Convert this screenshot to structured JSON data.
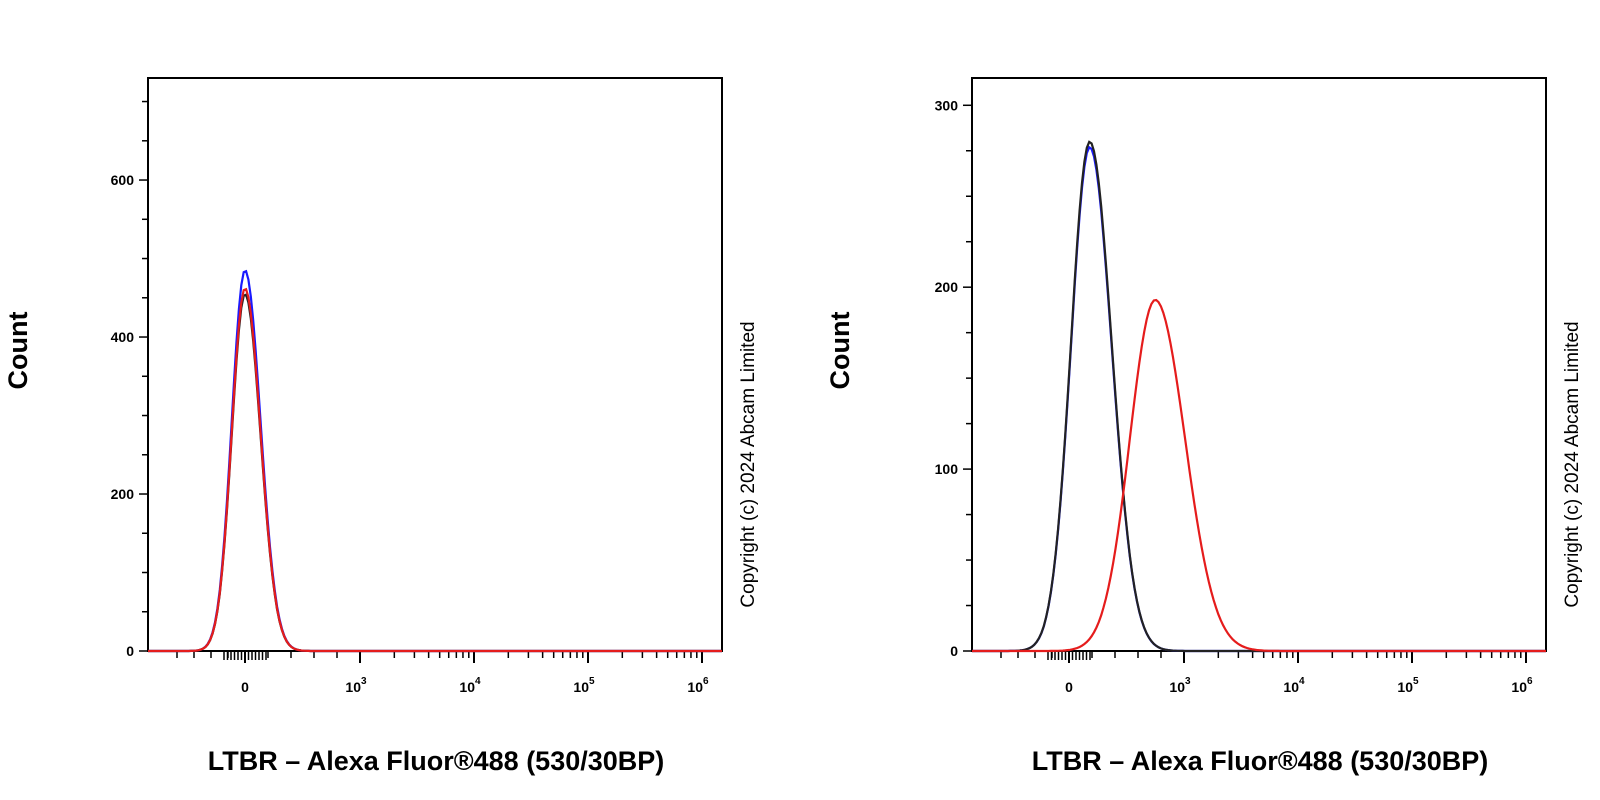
{
  "chart_data": [
    {
      "type": "line",
      "subtype": "histogram-overlay",
      "xlabel": "LTBR – Alexa Fluor®488 (530/30BP)",
      "ylabel": "Count",
      "x_scale": "biexponential",
      "x_tick_labels": [
        {
          "base": "0",
          "exp": "",
          "value": 0
        },
        {
          "base": "10",
          "exp": "3",
          "value": 1000
        },
        {
          "base": "10",
          "exp": "4",
          "value": 10000
        },
        {
          "base": "10",
          "exp": "5",
          "value": 100000
        },
        {
          "base": "10",
          "exp": "6",
          "value": 1000000
        }
      ],
      "y_ticks": [
        0,
        200,
        400,
        600
      ],
      "ylim": [
        0,
        730
      ],
      "copyright": "Copyright (c) 2024 Abcam Limited",
      "grid": false,
      "series": [
        {
          "color": "#1a1aff",
          "peak_x": 0,
          "peak_y": 485,
          "width": 0.06
        },
        {
          "color": "#222222",
          "peak_x": 0,
          "peak_y": 455,
          "width": 0.06
        },
        {
          "color": "#e51c1c",
          "peak_x": 0,
          "peak_y": 462,
          "width": 0.06
        }
      ]
    },
    {
      "type": "line",
      "subtype": "histogram-overlay",
      "xlabel": "LTBR – Alexa Fluor®488 (530/30BP)",
      "ylabel": "Count",
      "x_scale": "biexponential",
      "x_tick_labels": [
        {
          "base": "0",
          "exp": "",
          "value": 0
        },
        {
          "base": "10",
          "exp": "3",
          "value": 1000
        },
        {
          "base": "10",
          "exp": "4",
          "value": 10000
        },
        {
          "base": "10",
          "exp": "5",
          "value": 100000
        },
        {
          "base": "10",
          "exp": "6",
          "value": 1000000
        }
      ],
      "y_ticks": [
        0,
        100,
        200,
        300
      ],
      "ylim": [
        0,
        315
      ],
      "copyright": "Copyright (c) 2024 Abcam Limited",
      "grid": false,
      "series": [
        {
          "color": "#1a1aff",
          "peak_x": 180,
          "peak_y": 277,
          "width": 0.085
        },
        {
          "color": "#222222",
          "peak_x": 180,
          "peak_y": 280,
          "width": 0.085
        },
        {
          "color": "#e51c1c",
          "peak_x": 750,
          "peak_y": 193,
          "width": 0.115
        }
      ]
    }
  ]
}
